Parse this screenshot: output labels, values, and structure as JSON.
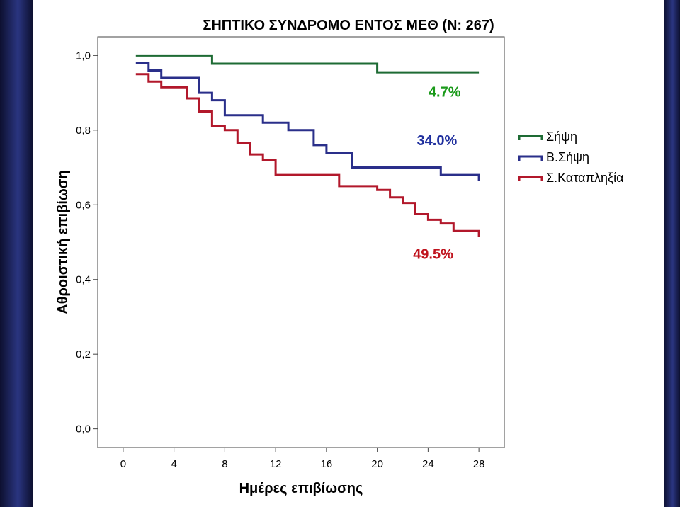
{
  "chart_data": {
    "type": "line",
    "step": true,
    "title": "ΣΗΠΤΙΚΟ ΣΥΝΔΡΟΜΟ ΕΝΤΟΣ ΜΕΘ (N: 267)",
    "xlabel": "Ημέρες επιβίωσης",
    "ylabel": "Αθροιστική επιβίωση",
    "xlim": [
      -2,
      30
    ],
    "ylim": [
      -0.05,
      1.05
    ],
    "xticks": [
      0,
      4,
      8,
      12,
      16,
      20,
      24,
      28
    ],
    "xtick_labels": [
      "0",
      "4",
      "8",
      "12",
      "16",
      "20",
      "24",
      "28"
    ],
    "yticks": [
      0,
      0.2,
      0.4,
      0.6,
      0.8,
      1.0
    ],
    "ytick_labels": [
      "0,0",
      "0,2",
      "0,4",
      "0,6",
      "0,8",
      "1,0"
    ],
    "grid": false,
    "legend_position": "right",
    "series": [
      {
        "name": "Σήψη",
        "color": "#1e6b34",
        "x": [
          1,
          7,
          7,
          20,
          20,
          28
        ],
        "y": [
          1.0,
          1.0,
          0.978,
          0.978,
          0.955,
          0.955
        ]
      },
      {
        "name": "Β.Σήψη",
        "color": "#2a2f8a",
        "x": [
          1,
          2,
          2,
          3,
          3,
          6,
          6,
          7,
          7,
          8,
          8,
          11,
          11,
          13,
          13,
          15,
          15,
          16,
          16,
          18,
          18,
          25,
          25,
          28,
          28
        ],
        "y": [
          0.98,
          0.98,
          0.96,
          0.96,
          0.94,
          0.94,
          0.9,
          0.9,
          0.88,
          0.88,
          0.84,
          0.84,
          0.82,
          0.82,
          0.8,
          0.8,
          0.76,
          0.76,
          0.74,
          0.74,
          0.7,
          0.7,
          0.68,
          0.68,
          0.665
        ]
      },
      {
        "name": "Σ.Καταπληξία",
        "color": "#b2182b",
        "x": [
          1,
          2,
          2,
          3,
          3,
          5,
          5,
          6,
          6,
          7,
          7,
          8,
          8,
          9,
          9,
          10,
          10,
          11,
          11,
          12,
          12,
          17,
          17,
          20,
          20,
          21,
          21,
          22,
          22,
          23,
          23,
          24,
          24,
          25,
          25,
          26,
          26,
          28,
          28
        ],
        "y": [
          0.95,
          0.95,
          0.93,
          0.93,
          0.915,
          0.915,
          0.885,
          0.885,
          0.85,
          0.85,
          0.81,
          0.81,
          0.8,
          0.8,
          0.765,
          0.765,
          0.735,
          0.735,
          0.72,
          0.72,
          0.68,
          0.68,
          0.65,
          0.65,
          0.64,
          0.64,
          0.62,
          0.62,
          0.605,
          0.605,
          0.575,
          0.575,
          0.56,
          0.56,
          0.55,
          0.55,
          0.53,
          0.53,
          0.515
        ]
      }
    ],
    "annotations": [
      {
        "text": "4.7%",
        "x": 25.3,
        "y": 0.89,
        "color": "#1a9a1a"
      },
      {
        "text": "34.0%",
        "x": 24.7,
        "y": 0.76,
        "color": "#1f2f9e"
      },
      {
        "text": "49.5%",
        "x": 24.4,
        "y": 0.455,
        "color": "#c0141e"
      }
    ]
  }
}
